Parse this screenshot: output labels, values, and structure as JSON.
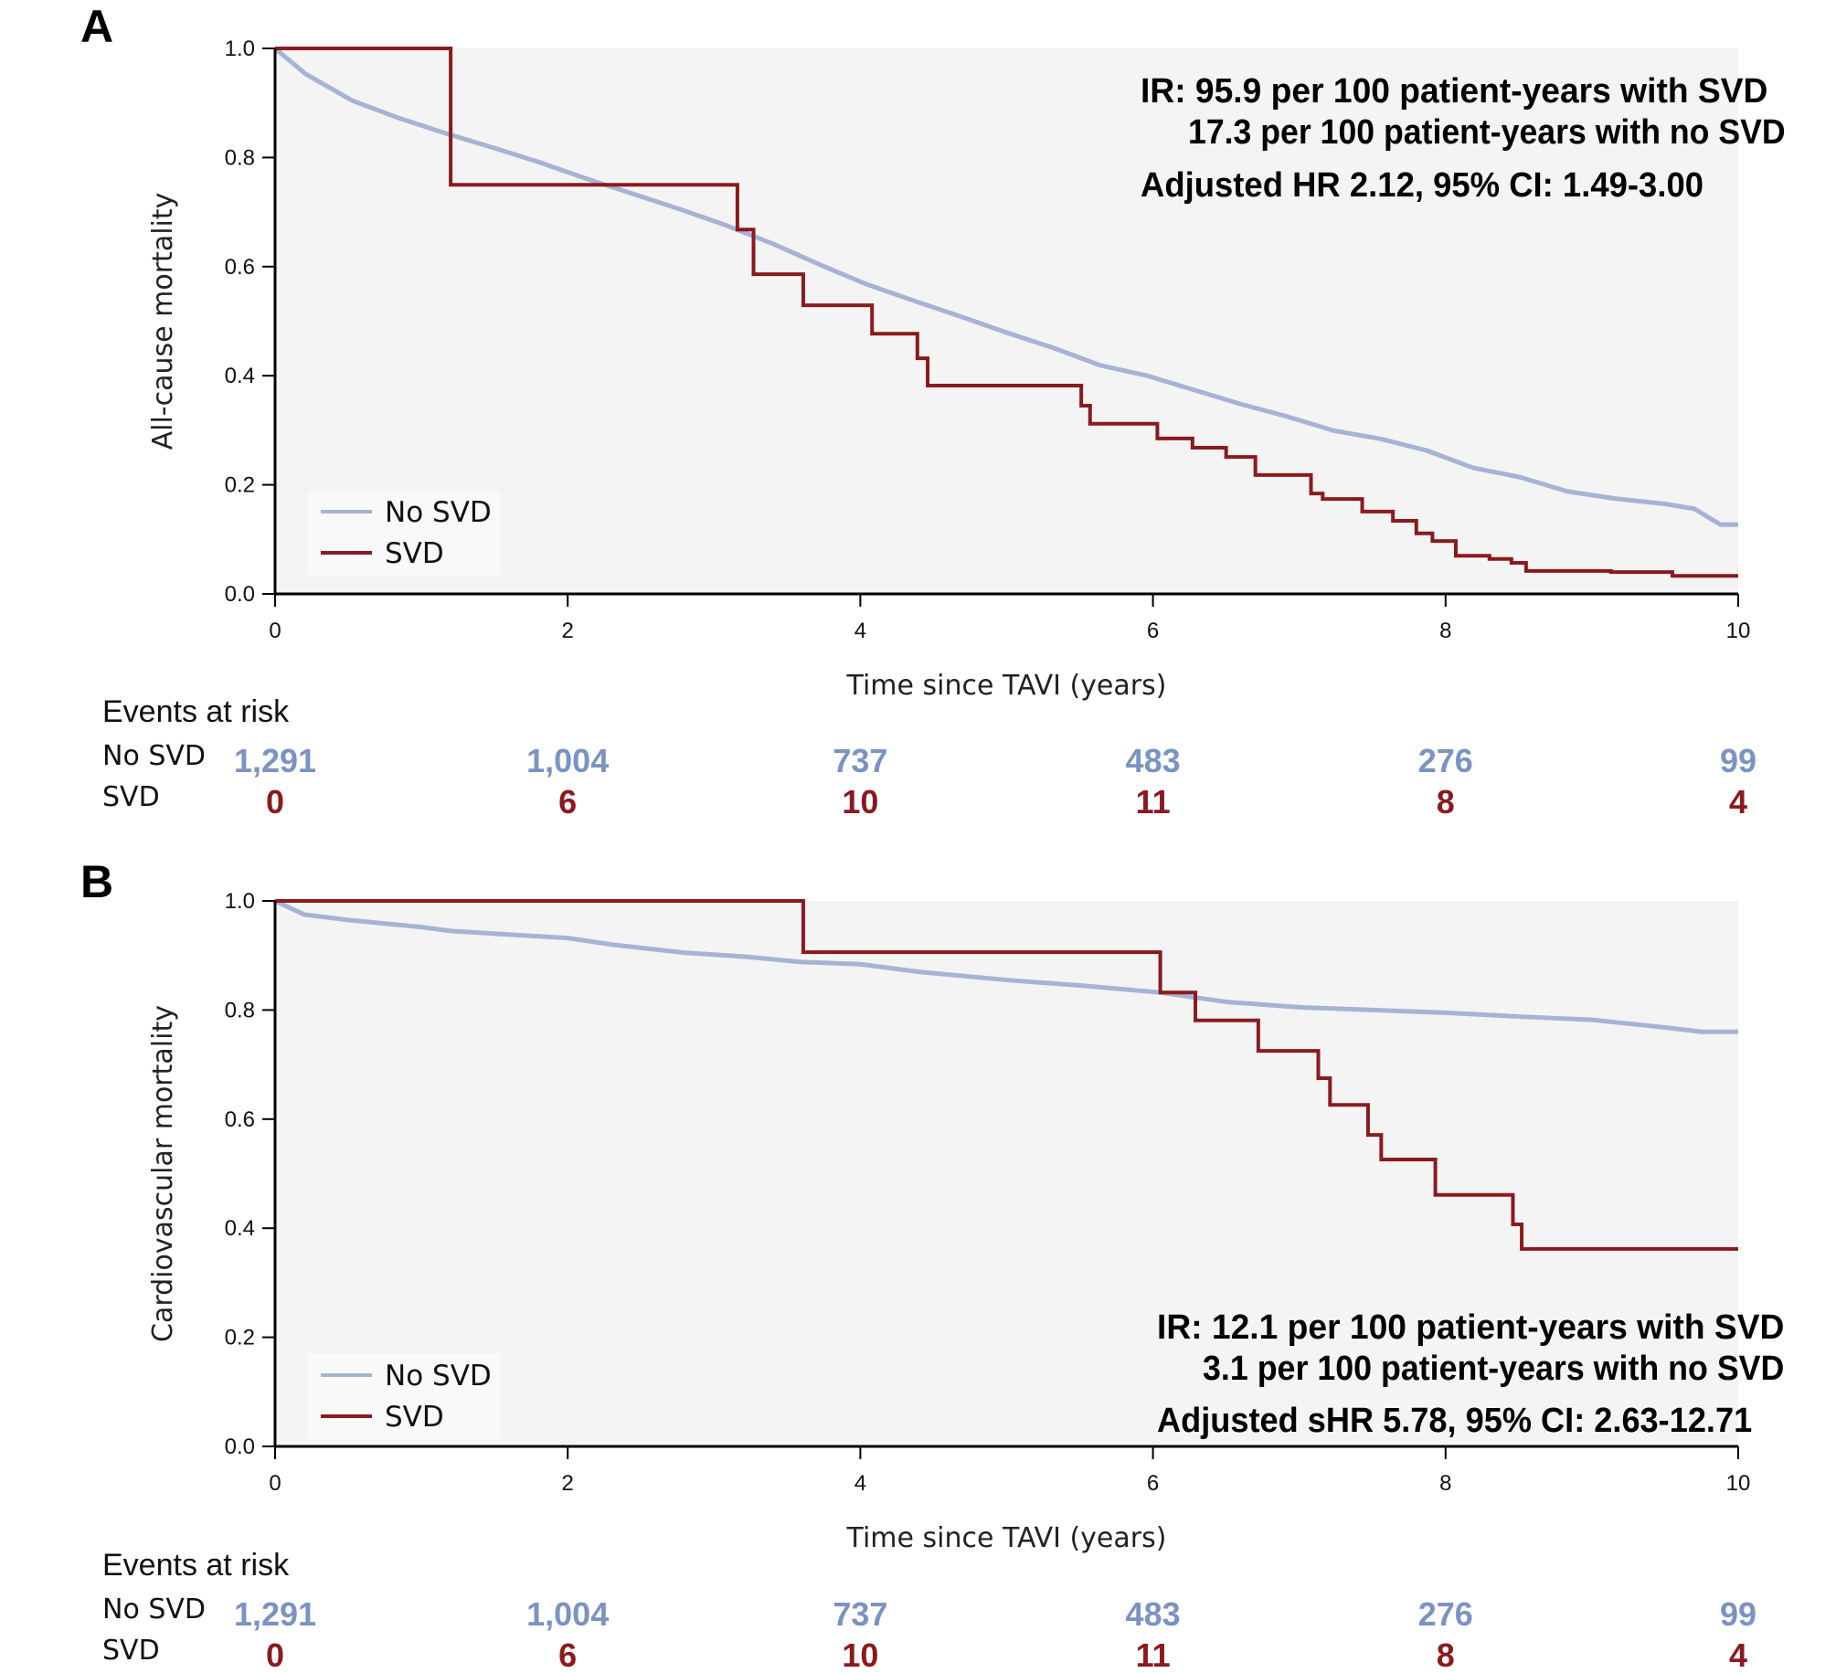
{
  "colors": {
    "no_svd": "#a6b3d6",
    "svd": "#8b1a1f",
    "risk_no_svd": "#7b93c2",
    "risk_svd": "#8b1a1f",
    "plot_bg": "#f4f4f4",
    "legend_bg": "#f9f9f9"
  },
  "chart_data": [
    {
      "panel": "A",
      "type": "line",
      "step": true,
      "xlabel": "Time since TAVI (years)",
      "ylabel": "All-cause mortality",
      "xlim": [
        0,
        10
      ],
      "ylim": [
        0,
        1.0
      ],
      "xticks": [
        0,
        2,
        4,
        6,
        8,
        10
      ],
      "yticks": [
        0.0,
        0.2,
        0.4,
        0.6,
        0.8,
        1.0
      ],
      "ytick_labels": [
        "0.0",
        "0.2",
        "0.4",
        "0.6",
        "0.8",
        "1.0"
      ],
      "xtick_labels": [
        "0",
        "2",
        "4",
        "6",
        "8",
        "10"
      ],
      "legend": {
        "placement": "bottom-left",
        "entries": [
          "No SVD",
          "SVD"
        ]
      },
      "annotation": [
        "IR: 95.9 per 100 patient-years with SVD",
        "17.3 per 100 patient-years with no SVD",
        "Adjusted HR 2.12, 95% CI: 1.49-3.00"
      ],
      "annotation_placement": "top-right",
      "series": [
        {
          "name": "No SVD",
          "step": false,
          "x": [
            0,
            0.21,
            0.53,
            0.85,
            1.17,
            1.49,
            1.81,
            2.13,
            2.45,
            2.77,
            3.09,
            3.41,
            3.72,
            4.04,
            4.36,
            4.68,
            5.0,
            5.32,
            5.64,
            5.96,
            6.28,
            6.6,
            6.92,
            7.24,
            7.56,
            7.87,
            8.19,
            8.51,
            8.83,
            9.15,
            9.5,
            9.7,
            9.88,
            10
          ],
          "y": [
            1.0,
            0.953,
            0.904,
            0.872,
            0.844,
            0.818,
            0.791,
            0.761,
            0.733,
            0.705,
            0.675,
            0.641,
            0.604,
            0.568,
            0.538,
            0.509,
            0.479,
            0.451,
            0.419,
            0.4,
            0.374,
            0.348,
            0.325,
            0.299,
            0.284,
            0.263,
            0.231,
            0.214,
            0.188,
            0.175,
            0.165,
            0.156,
            0.127,
            0.127
          ]
        },
        {
          "name": "SVD",
          "step": true,
          "x": [
            0,
            1.2,
            3.16,
            3.27,
            3.61,
            4.08,
            4.39,
            4.46,
            5.51,
            5.57,
            6.03,
            6.27,
            6.5,
            6.7,
            7.08,
            7.16,
            7.43,
            7.64,
            7.8,
            7.91,
            8.07,
            8.3,
            8.45,
            8.55,
            9.13,
            9.55,
            10
          ],
          "y": [
            1.0,
            0.75,
            0.668,
            0.586,
            0.529,
            0.477,
            0.432,
            0.382,
            0.345,
            0.312,
            0.285,
            0.268,
            0.251,
            0.218,
            0.184,
            0.174,
            0.151,
            0.134,
            0.111,
            0.097,
            0.07,
            0.064,
            0.057,
            0.042,
            0.04,
            0.033,
            0.033
          ]
        }
      ],
      "at_risk": {
        "title": "Events at risk",
        "rows": [
          {
            "label": "No SVD",
            "values": [
              "1,291",
              "1,004",
              "737",
              "483",
              "276",
              "99"
            ]
          },
          {
            "label": "SVD",
            "values": [
              "0",
              "6",
              "10",
              "11",
              "8",
              "4"
            ]
          }
        ]
      }
    },
    {
      "panel": "B",
      "type": "line",
      "step": true,
      "xlabel": "Time since TAVI (years)",
      "ylabel": "Cardiovascular mortality",
      "xlim": [
        0,
        10
      ],
      "ylim": [
        0,
        1.0
      ],
      "xticks": [
        0,
        2,
        4,
        6,
        8,
        10
      ],
      "yticks": [
        0.0,
        0.2,
        0.4,
        0.6,
        0.8,
        1.0
      ],
      "ytick_labels": [
        "0.0",
        "0.2",
        "0.4",
        "0.6",
        "0.8",
        "1.0"
      ],
      "xtick_labels": [
        "0",
        "2",
        "4",
        "6",
        "8",
        "10"
      ],
      "legend": {
        "placement": "bottom-left",
        "entries": [
          "No SVD",
          "SVD"
        ]
      },
      "annotation": [
        "IR: 12.1 per 100 patient-years with SVD",
        "3.1 per 100 patient-years with no SVD",
        "Adjusted sHR 5.78, 95% CI: 2.63-12.71"
      ],
      "annotation_placement": "bottom-right",
      "series": [
        {
          "name": "No SVD",
          "step": false,
          "x": [
            0,
            0.2,
            0.5,
            1.0,
            1.2,
            1.5,
            2.0,
            2.3,
            2.8,
            3.2,
            3.6,
            4.0,
            4.4,
            5.0,
            5.5,
            6.05,
            6.5,
            7.0,
            7.5,
            8.0,
            8.5,
            9.0,
            9.5,
            9.75,
            10
          ],
          "y": [
            1.0,
            0.975,
            0.965,
            0.952,
            0.945,
            0.94,
            0.932,
            0.92,
            0.905,
            0.898,
            0.888,
            0.884,
            0.87,
            0.855,
            0.845,
            0.832,
            0.815,
            0.805,
            0.8,
            0.795,
            0.788,
            0.782,
            0.768,
            0.76,
            0.76
          ]
        },
        {
          "name": "SVD",
          "step": true,
          "x": [
            0,
            3.61,
            6.05,
            6.29,
            6.72,
            7.13,
            7.21,
            7.47,
            7.56,
            7.93,
            8.46,
            8.52,
            10
          ],
          "y": [
            1.0,
            0.906,
            0.832,
            0.781,
            0.725,
            0.675,
            0.626,
            0.571,
            0.526,
            0.461,
            0.407,
            0.362,
            0.362
          ]
        }
      ],
      "at_risk": {
        "title": "Events at risk",
        "rows": [
          {
            "label": "No SVD",
            "values": [
              "1,291",
              "1,004",
              "737",
              "483",
              "276",
              "99"
            ]
          },
          {
            "label": "SVD",
            "values": [
              "0",
              "6",
              "10",
              "11",
              "8",
              "4"
            ]
          }
        ]
      }
    }
  ]
}
